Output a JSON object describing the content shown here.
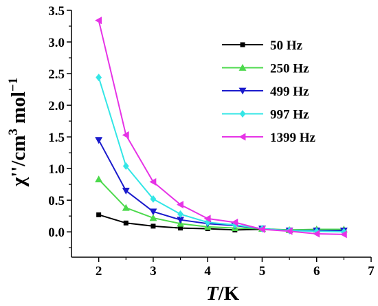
{
  "chart_data": {
    "type": "line",
    "title": "",
    "xlabel": {
      "italic": "T",
      "rest": "/K"
    },
    "ylabel": {
      "main": "χ''/cm",
      "exp1": "3",
      "mid": " mol",
      "exp2": "−1"
    },
    "xlim": [
      1.5,
      7
    ],
    "ylim": [
      -0.4,
      3.5
    ],
    "x_ticks": [
      "2",
      "3",
      "4",
      "5",
      "6",
      "7"
    ],
    "y_ticks": [
      "0.0",
      "0.5",
      "1.0",
      "1.5",
      "2.0",
      "2.5",
      "3.0",
      "3.5"
    ],
    "grid": false,
    "legend_position": "top-right",
    "x": [
      2,
      2.5,
      3,
      3.5,
      4,
      4.5,
      5,
      5.5,
      6,
      6.5
    ],
    "series": [
      {
        "name": "50 Hz",
        "color": "#000000",
        "marker": "square",
        "values": [
          0.27,
          0.14,
          0.09,
          0.06,
          0.05,
          0.03,
          0.04,
          0.03,
          0.03,
          0.02
        ]
      },
      {
        "name": "250 Hz",
        "color": "#4cd94c",
        "marker": "triangle-up",
        "values": [
          0.83,
          0.38,
          0.22,
          0.13,
          0.08,
          0.06,
          0.05,
          0.03,
          0.04,
          0.04
        ]
      },
      {
        "name": "499 Hz",
        "color": "#1a1acc",
        "marker": "triangle-down",
        "values": [
          1.45,
          0.65,
          0.32,
          0.19,
          0.13,
          0.1,
          0.05,
          0.02,
          0.02,
          0.02
        ]
      },
      {
        "name": "997 Hz",
        "color": "#33e6e6",
        "marker": "diamond",
        "values": [
          2.44,
          1.04,
          0.52,
          0.28,
          0.15,
          0.11,
          0.05,
          0.02,
          0.01,
          0.0
        ]
      },
      {
        "name": "1399 Hz",
        "color": "#e633e6",
        "marker": "triangle-left",
        "values": [
          3.34,
          1.53,
          0.79,
          0.43,
          0.21,
          0.15,
          0.04,
          0.01,
          -0.03,
          -0.04
        ]
      }
    ]
  }
}
